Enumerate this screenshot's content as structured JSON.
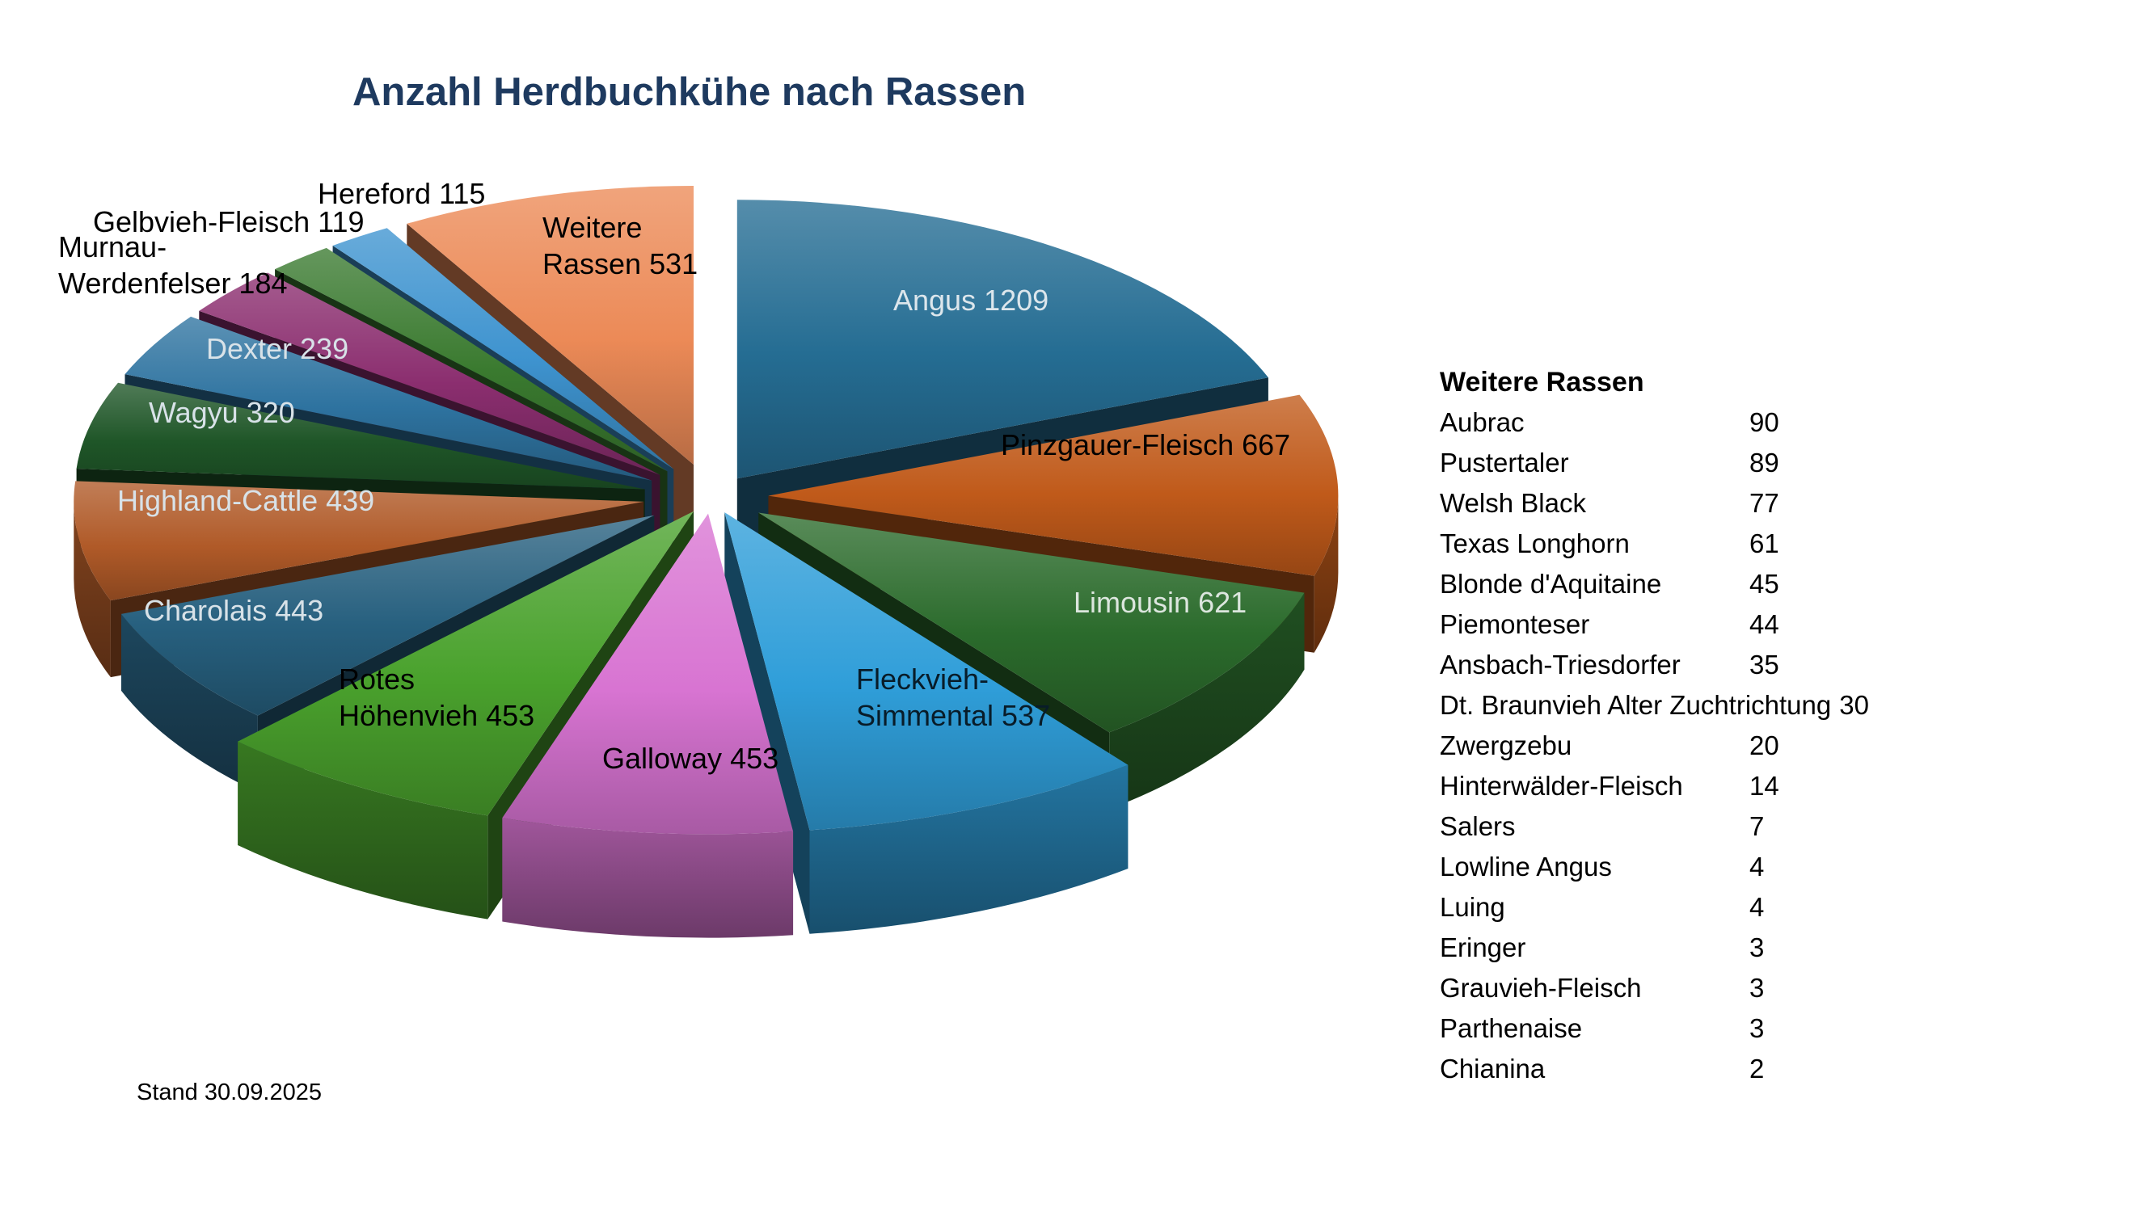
{
  "title": "Anzahl Herdbuchkühe nach Rassen",
  "footnote": "Stand 30.09.2025",
  "chart_data": {
    "type": "pie",
    "style": "3d-exploded-pie",
    "title": "Anzahl Herdbuchkühe nach Rassen",
    "total": 6330,
    "start_angle_deg": 0,
    "direction": "clockwise",
    "legend_position": "none",
    "geometry": {
      "cx": 880,
      "cy": 615,
      "rx": 705,
      "ry": 345,
      "depth": 95
    },
    "series": [
      {
        "name": "Angus",
        "value": 1209,
        "color": "#256d93",
        "explode": 0.08,
        "rscale": 1.0,
        "dscale": 1.0,
        "label": {
          "lines": [
            "Angus 1209"
          ],
          "x": 1105,
          "y": 349,
          "color": "#dce6ec"
        }
      },
      {
        "name": "Pinzgauer-Fleisch",
        "value": 667,
        "color": "#c05a1a",
        "explode": 0.1,
        "rscale": 1.0,
        "dscale": 1.0,
        "label": {
          "lines": [
            "Pinzgauer-Fleisch 667"
          ],
          "x": 1238,
          "y": 528,
          "color": "#000000"
        }
      },
      {
        "name": "Limousin",
        "value": 621,
        "color": "#2b6b2c",
        "explode": 0.1,
        "rscale": 1.0,
        "dscale": 1.0,
        "label": {
          "lines": [
            "Limousin 621"
          ],
          "x": 1328,
          "y": 723,
          "color": "#dce6de"
        }
      },
      {
        "name": "Fleckvieh-Simmental",
        "value": 537,
        "color": "#2f9ed9",
        "explode": 0.06,
        "rscale": 1.15,
        "dscale": 1.35,
        "label": {
          "lines": [
            "Fleckvieh-",
            "Simmental 537"
          ],
          "x": 1059,
          "y": 818,
          "color": "#081c29"
        }
      },
      {
        "name": "Galloway",
        "value": 453,
        "color": "#d874d2",
        "explode": 0.06,
        "rscale": 1.15,
        "dscale": 1.35,
        "label": {
          "lines": [
            "Galloway 453"
          ],
          "x": 745,
          "y": 916,
          "color": "#000000"
        }
      },
      {
        "name": "Rotes Höhenvieh",
        "value": 453,
        "color": "#4aa22d",
        "explode": 0.06,
        "rscale": 1.15,
        "dscale": 1.35,
        "label": {
          "lines": [
            "Rotes",
            "Höhenvieh 453"
          ],
          "x": 419,
          "y": 818,
          "color": "#000000"
        }
      },
      {
        "name": "Charolais",
        "value": 443,
        "color": "#27607f",
        "explode": 0.12,
        "rscale": 1.0,
        "dscale": 1.0,
        "label": {
          "lines": [
            "Charolais 443"
          ],
          "x": 178,
          "y": 733,
          "color": "#d8e2e8"
        }
      },
      {
        "name": "Highland-Cattle",
        "value": 439,
        "color": "#b05a28",
        "explode": 0.12,
        "rscale": 1.0,
        "dscale": 1.0,
        "label": {
          "lines": [
            "Highland-Cattle 439"
          ],
          "x": 145,
          "y": 597,
          "color": "#d8e2e8"
        }
      },
      {
        "name": "Wagyu",
        "value": 320,
        "color": "#1f5628",
        "explode": 0.12,
        "rscale": 1.0,
        "dscale": 1.0,
        "label": {
          "lines": [
            "Wagyu 320"
          ],
          "x": 184,
          "y": 488,
          "color": "#d8e2e8"
        }
      },
      {
        "name": "Dexter",
        "value": 239,
        "color": "#2e73a0",
        "explode": 0.12,
        "rscale": 1.0,
        "dscale": 1.0,
        "label": {
          "lines": [
            "Dexter 239"
          ],
          "x": 255,
          "y": 409,
          "color": "#d8e2e8"
        }
      },
      {
        "name": "Murnau-Werdenfelser",
        "value": 184,
        "color": "#8b2e6f",
        "explode": 0.12,
        "rscale": 1.0,
        "dscale": 1.0,
        "label": {
          "lines": [
            "Murnau-",
            "Werdenfelser 184"
          ],
          "x": 72,
          "y": 283,
          "color": "#000000"
        }
      },
      {
        "name": "Gelbvieh-Fleisch",
        "value": 119,
        "color": "#3a7a2f",
        "explode": 0.12,
        "rscale": 1.0,
        "dscale": 1.0,
        "label": {
          "lines": [
            "Gelbvieh-Fleisch 119"
          ],
          "x": 115,
          "y": 252,
          "color": "#000000"
        }
      },
      {
        "name": "Hereford",
        "value": 115,
        "color": "#3e93cf",
        "explode": 0.12,
        "rscale": 1.0,
        "dscale": 1.0,
        "label": {
          "lines": [
            "Hereford 115"
          ],
          "x": 393,
          "y": 217,
          "color": "#000000"
        }
      },
      {
        "name": "Weitere Rassen",
        "value": 531,
        "color": "#ec8a57",
        "explode": 0.12,
        "rscale": 1.0,
        "dscale": 1.0,
        "label": {
          "lines": [
            "Weitere",
            "Rassen 531"
          ],
          "x": 671,
          "y": 259,
          "color": "#000000"
        }
      }
    ]
  },
  "side_list": {
    "header": "Weitere Rassen",
    "items": [
      {
        "name": "Aubrac",
        "value": 90
      },
      {
        "name": "Pustertaler",
        "value": 89
      },
      {
        "name": "Welsh Black",
        "value": 77
      },
      {
        "name": "Texas Longhorn",
        "value": 61
      },
      {
        "name": "Blonde d'Aquitaine",
        "value": 45
      },
      {
        "name": "Piemonteser",
        "value": 44
      },
      {
        "name": "Ansbach-Triesdorfer",
        "value": 35
      },
      {
        "name": "Dt. Braunvieh Alter Zuchtrichtung",
        "value": 30
      },
      {
        "name": "Zwergzebu",
        "value": 20
      },
      {
        "name": "Hinterwälder-Fleisch",
        "value": 14
      },
      {
        "name": "Salers",
        "value": 7
      },
      {
        "name": "Lowline Angus",
        "value": 4
      },
      {
        "name": "Luing",
        "value": 4
      },
      {
        "name": "Eringer",
        "value": 3
      },
      {
        "name": "Grauvieh-Fleisch",
        "value": 3
      },
      {
        "name": "Parthenaise",
        "value": 3
      },
      {
        "name": "Chianina",
        "value": 2
      }
    ]
  }
}
